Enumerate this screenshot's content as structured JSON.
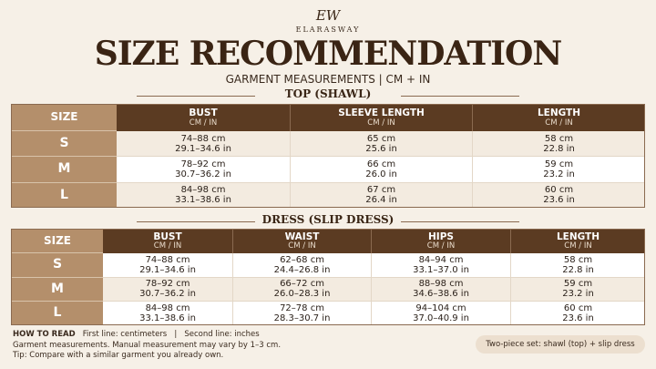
{
  "brand": {
    "monogram": "EW",
    "name": "ELARASWAY"
  },
  "title": "SIZE RECOMMENDATION",
  "subtitle": "GARMENT MEASUREMENTS | CM + IN",
  "tables": [
    {
      "title": "TOP (SHAWL)",
      "size_header": "SIZE",
      "columns": [
        {
          "name": "BUST",
          "unit": "CM / IN"
        },
        {
          "name": "SLEEVE LENGTH",
          "unit": "CM / IN"
        },
        {
          "name": "LENGTH",
          "unit": "CM / IN"
        }
      ],
      "rows": [
        {
          "size": "S",
          "cells": [
            [
              "74–88 cm",
              "29.1–34.6 in"
            ],
            [
              "65 cm",
              "25.6 in"
            ],
            [
              "58 cm",
              "22.8 in"
            ]
          ]
        },
        {
          "size": "M",
          "cells": [
            [
              "78–92 cm",
              "30.7–36.2 in"
            ],
            [
              "66 cm",
              "26.0 in"
            ],
            [
              "59 cm",
              "23.2 in"
            ]
          ]
        },
        {
          "size": "L",
          "cells": [
            [
              "84–98 cm",
              "33.1–38.6 in"
            ],
            [
              "67 cm",
              "26.4 in"
            ],
            [
              "60 cm",
              "23.6 in"
            ]
          ]
        }
      ]
    },
    {
      "title": "DRESS (SLIP DRESS)",
      "size_header": "SIZE",
      "columns": [
        {
          "name": "BUST",
          "unit": "CM / IN"
        },
        {
          "name": "WAIST",
          "unit": "CM / IN"
        },
        {
          "name": "HIPS",
          "unit": "CM / IN"
        },
        {
          "name": "LENGTH",
          "unit": "CM / IN"
        }
      ],
      "rows": [
        {
          "size": "S",
          "cells": [
            [
              "74–88 cm",
              "29.1–34.6 in"
            ],
            [
              "62–68 cm",
              "24.4–26.8 in"
            ],
            [
              "84–94 cm",
              "33.1–37.0 in"
            ],
            [
              "58 cm",
              "22.8 in"
            ]
          ]
        },
        {
          "size": "M",
          "cells": [
            [
              "78–92 cm",
              "30.7–36.2 in"
            ],
            [
              "66–72 cm",
              "26.0–28.3 in"
            ],
            [
              "88–98 cm",
              "34.6–38.6 in"
            ],
            [
              "59 cm",
              "23.2 in"
            ]
          ]
        },
        {
          "size": "L",
          "cells": [
            [
              "84–98 cm",
              "33.1–38.6 in"
            ],
            [
              "72–78 cm",
              "28.3–30.7 in"
            ],
            [
              "94–104 cm",
              "37.0–40.9 in"
            ],
            [
              "60 cm",
              "23.6 in"
            ]
          ]
        }
      ]
    }
  ],
  "footer": {
    "how_to_read": "HOW TO READ",
    "first_line": "First line: centimeters",
    "separator": "|",
    "second_line": "Second line: inches",
    "note": "Garment measurements. Manual measurement may vary by 1–3 cm.",
    "tip": "Tip: Compare with a similar garment you already own.",
    "set_note": "Two-piece set: shawl (top) + slip dress"
  }
}
